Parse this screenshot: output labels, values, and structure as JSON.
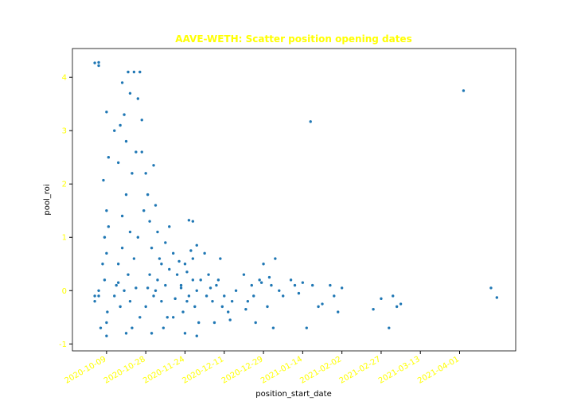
{
  "chart_data": {
    "type": "scatter",
    "title": "AAVE-WETH: Scatter position opening dates",
    "x_label": "position_start_date",
    "y_label": "pool_roi",
    "color": "#1f77b4",
    "xlim": [
      -0.87,
      10.43
    ],
    "ylim": [
      -1.13,
      4.54
    ],
    "xticks": [
      {
        "value": 0,
        "label": "2020-10-09"
      },
      {
        "value": 1,
        "label": "2020-10-28"
      },
      {
        "value": 2,
        "label": "2020-11-24"
      },
      {
        "value": 3,
        "label": "2020-12-11"
      },
      {
        "value": 4,
        "label": "2020-12-29"
      },
      {
        "value": 5,
        "label": "2021-01-14"
      },
      {
        "value": 6,
        "label": "2021-02-02"
      },
      {
        "value": 7,
        "label": "2021-02-27"
      },
      {
        "value": 8,
        "label": "2021-03-13"
      },
      {
        "value": 9,
        "label": "2021-04-01"
      }
    ],
    "yticks": [
      -1,
      0,
      1,
      2,
      3,
      4
    ],
    "x": [
      -0.3,
      -0.2,
      -0.3,
      -0.2,
      -0.15,
      -0.3,
      -0.2,
      -0.2,
      -0.1,
      -0.05,
      0,
      -0.05,
      0,
      0,
      -0.08,
      0,
      0.05,
      0.05,
      0,
      0.02,
      0.2,
      0.3,
      0.35,
      0.4,
      0.45,
      0.5,
      0.55,
      0.6,
      0.7,
      0.8,
      0.85,
      0.9,
      0.75,
      0.65,
      0.5,
      0.4,
      0.3,
      0.25,
      0.35,
      0.45,
      0.55,
      0.6,
      0.7,
      0.8,
      0.9,
      0.95,
      0.5,
      0.65,
      0.85,
      0.2,
      0.3,
      0.75,
      0.6,
      0.4,
      1.0,
      1.05,
      1.1,
      1.15,
      1.2,
      1.25,
      1.3,
      1.35,
      1.1,
      1.2,
      1.3,
      1.4,
      1.5,
      1.5,
      1.55,
      1.0,
      1.15,
      1.45,
      1.6,
      1.05,
      1.25,
      1.4,
      1.7,
      1.8,
      1.9,
      2.0,
      2.1,
      2.2,
      2.3,
      1.75,
      1.85,
      1.95,
      2.05,
      2.15,
      2.25,
      2.35,
      2.0,
      1.7,
      2.2,
      2.3,
      2.1,
      2.2,
      2.3,
      2.4,
      1.6,
      1.9,
      2.05,
      2.5,
      2.6,
      2.7,
      2.8,
      2.9,
      2.55,
      2.65,
      2.75,
      2.85,
      2.95,
      3.0,
      3.1,
      3.2,
      3.3,
      3.15,
      3.5,
      3.6,
      3.7,
      3.8,
      3.9,
      4.0,
      4.1,
      4.2,
      4.3,
      4.4,
      4.5,
      3.55,
      3.75,
      4.25,
      3.95,
      4.15,
      4.7,
      4.8,
      4.9,
      5.0,
      5.1,
      5.2,
      5.25,
      5.4,
      5.5,
      5.7,
      5.8,
      6.0,
      5.9,
      6.8,
      7.0,
      7.2,
      7.3,
      7.4,
      7.5,
      9.1,
      9.8,
      9.95
    ],
    "values": [
      -0.2,
      -0.1,
      -0.1,
      0.0,
      -0.7,
      4.27,
      4.28,
      4.22,
      0.5,
      1.0,
      1.5,
      0.2,
      -0.6,
      -0.85,
      2.07,
      3.35,
      2.5,
      1.2,
      0.7,
      -0.4,
      3.0,
      2.4,
      3.1,
      3.9,
      3.3,
      2.8,
      4.1,
      3.7,
      4.1,
      3.6,
      4.1,
      3.2,
      2.6,
      2.2,
      1.8,
      1.4,
      0.5,
      0.1,
      -0.3,
      0.0,
      0.3,
      -0.2,
      0.6,
      1.0,
      2.6,
      1.5,
      -0.8,
      -0.7,
      -0.5,
      -0.1,
      0.15,
      0.05,
      1.1,
      0.8,
      2.2,
      1.8,
      1.3,
      0.8,
      2.35,
      1.6,
      1.1,
      0.6,
      0.3,
      -0.1,
      0.2,
      0.5,
      0.9,
      0.1,
      -0.5,
      -0.3,
      -0.8,
      -0.7,
      0.4,
      0.05,
      0.0,
      -0.2,
      0.7,
      0.3,
      0.1,
      0.5,
      -0.1,
      0.2,
      0.0,
      -0.15,
      0.55,
      -0.4,
      0.35,
      0.75,
      -0.3,
      -0.6,
      -0.8,
      -0.5,
      0.6,
      -0.85,
      1.32,
      1.3,
      0.85,
      0.2,
      1.2,
      0.05,
      -0.2,
      0.7,
      0.3,
      -0.2,
      0.1,
      0.6,
      -0.1,
      0.05,
      -0.6,
      0.2,
      -0.3,
      -0.1,
      -0.4,
      -0.2,
      0.0,
      -0.55,
      0.3,
      -0.2,
      0.1,
      -0.6,
      0.2,
      0.5,
      -0.3,
      0.1,
      0.6,
      0.0,
      -0.1,
      -0.35,
      -0.1,
      -0.7,
      0.15,
      0.25,
      0.2,
      0.1,
      -0.05,
      0.15,
      -0.7,
      3.17,
      0.1,
      -0.3,
      -0.25,
      0.1,
      -0.1,
      0.05,
      -0.4,
      -0.35,
      -0.15,
      -0.7,
      -0.1,
      -0.3,
      -0.25,
      3.75,
      0.05,
      -0.13
    ]
  }
}
